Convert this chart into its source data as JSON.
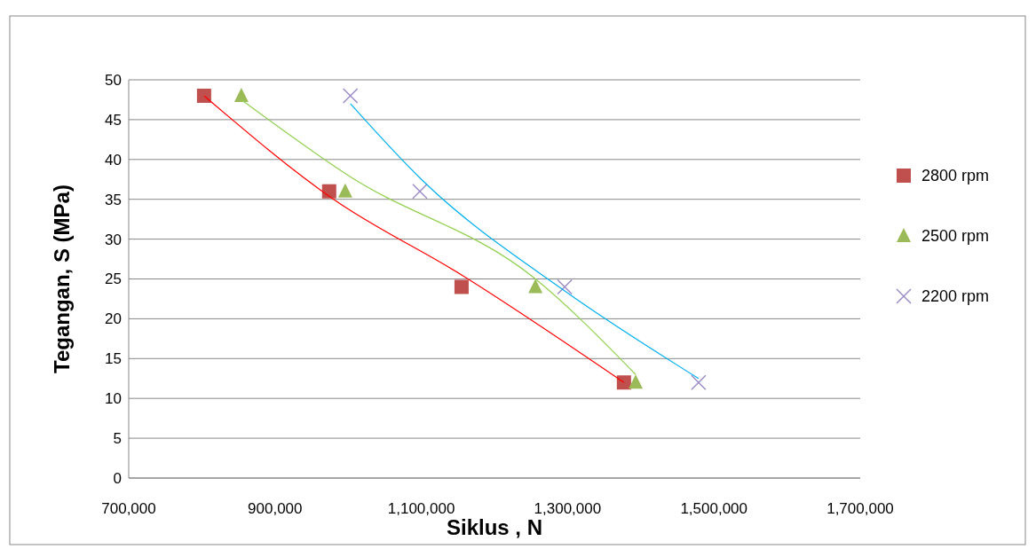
{
  "chart_data": {
    "type": "scatter",
    "xlabel": "Siklus , N",
    "ylabel": "Tegangan, S (MPa)",
    "xlim": [
      700000,
      1700000
    ],
    "ylim": [
      0,
      50
    ],
    "xticks": [
      {
        "value": 700000,
        "label": "700,000"
      },
      {
        "value": 900000,
        "label": "900,000"
      },
      {
        "value": 1100000,
        "label": "1,100,000"
      },
      {
        "value": 1300000,
        "label": "1,300,000"
      },
      {
        "value": 1500000,
        "label": "1,500,000"
      },
      {
        "value": 1700000,
        "label": "1,700,000"
      }
    ],
    "yticks": [
      0,
      5,
      10,
      15,
      20,
      25,
      30,
      35,
      40,
      45,
      50
    ],
    "grid": "y",
    "legend": "right",
    "series": [
      {
        "name": "2800 rpm",
        "color": "#c0504d",
        "marker": "square",
        "x": [
          803000,
          974000,
          1155000,
          1377000
        ],
        "values": [
          48,
          36,
          24,
          12
        ]
      },
      {
        "name": "2500 rpm",
        "color": "#9bbb59",
        "marker": "triangle",
        "x": [
          854000,
          996000,
          1256000,
          1393000
        ],
        "values": [
          48,
          36,
          24,
          12
        ]
      },
      {
        "name": "2200 rpm",
        "color": "#9d8cc8",
        "marker": "cross",
        "x": [
          1003000,
          1098000,
          1296000,
          1479000
        ],
        "values": [
          48,
          36,
          24,
          12
        ]
      },
      {
        "type": "line",
        "color": "#ff0000",
        "marker": "none",
        "x": [
          803000,
          980000,
          1155000,
          1377000
        ],
        "values": [
          48,
          35,
          25.5,
          12
        ]
      },
      {
        "type": "line",
        "color": "#92d050",
        "marker": "none",
        "x": [
          854000,
          1000000,
          1256000,
          1393000
        ],
        "values": [
          47.5,
          38,
          25,
          13
        ]
      },
      {
        "type": "line",
        "color": "#00b0f0",
        "marker": "none",
        "x": [
          1003000,
          1100000,
          1296000,
          1479000
        ],
        "values": [
          47,
          37.5,
          23.5,
          12.5
        ]
      }
    ]
  }
}
